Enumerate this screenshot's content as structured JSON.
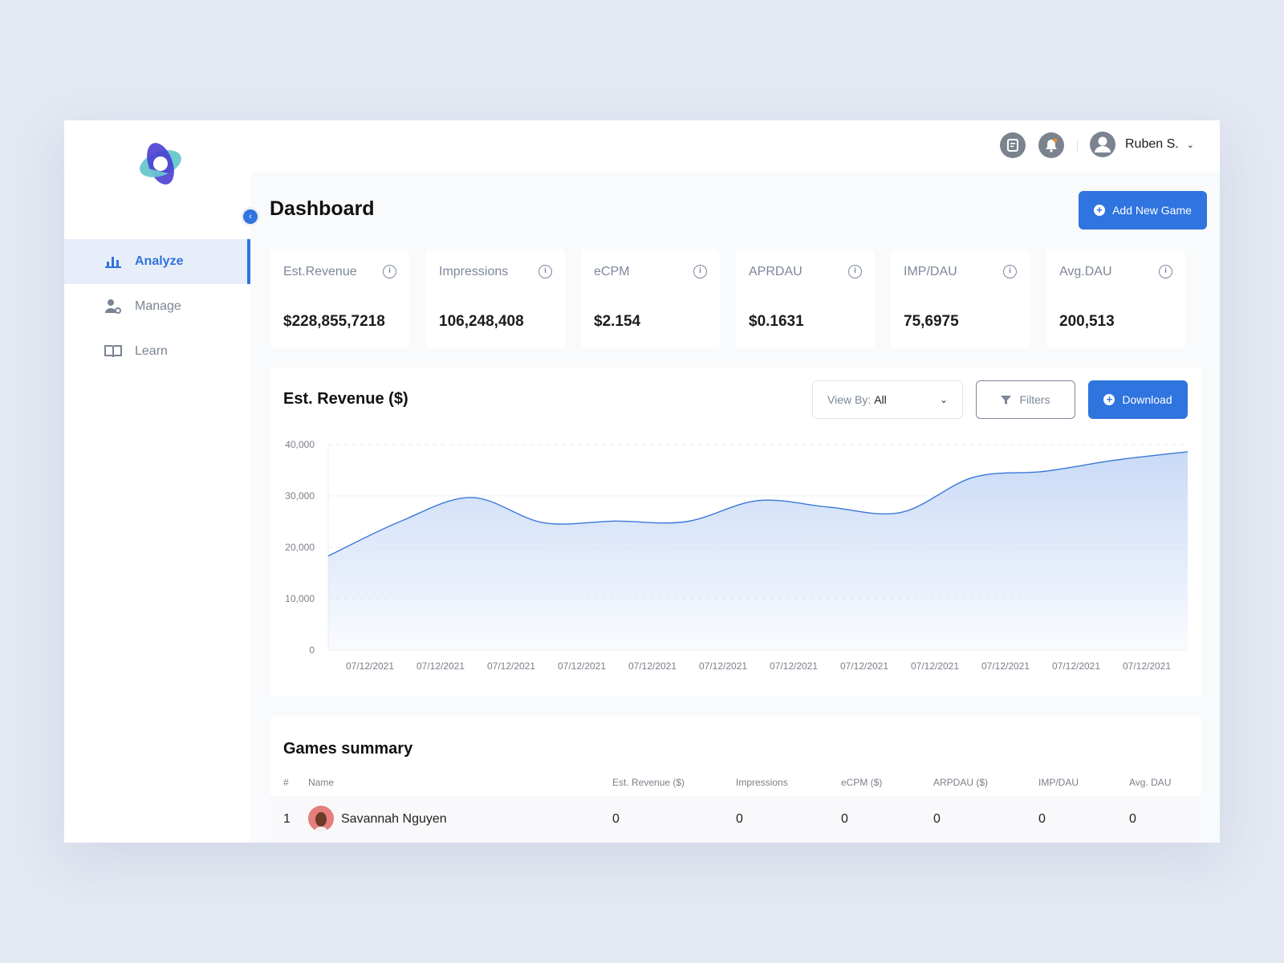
{
  "user": {
    "name": "Ruben S."
  },
  "sidebar": {
    "items": [
      {
        "label": "Analyze",
        "icon": "bar-chart-icon",
        "active": true
      },
      {
        "label": "Manage",
        "icon": "user-gear-icon"
      },
      {
        "label": "Learn",
        "icon": "book-icon"
      }
    ]
  },
  "page": {
    "title": "Dashboard",
    "add_button": "Add New Game"
  },
  "kpis": [
    {
      "label": "Est.Revenue",
      "value": "$228,855,7218"
    },
    {
      "label": "Impressions",
      "value": "106,248,408"
    },
    {
      "label": "eCPM",
      "value": "$2.154"
    },
    {
      "label": "APRDAU",
      "value": "$0.1631"
    },
    {
      "label": "IMP/DAU",
      "value": "75,6975"
    },
    {
      "label": "Avg.DAU",
      "value": "200,513"
    }
  ],
  "revenue_panel": {
    "title": "Est. Revenue ($)",
    "view_by_label": "View By:",
    "view_by_value": "All",
    "filters": "Filters",
    "download": "Download"
  },
  "chart_data": {
    "type": "area",
    "ylim": [
      0,
      40000
    ],
    "y_ticks": [
      "0",
      "10,000",
      "20,000",
      "30,000",
      "40,000"
    ],
    "x_tick_labels": [
      "07/12/2021",
      "07/12/2021",
      "07/12/2021",
      "07/12/2021",
      "07/12/2021",
      "07/12/2021",
      "07/12/2021",
      "07/12/2021",
      "07/12/2021",
      "07/12/2021",
      "07/12/2021",
      "07/12/2021"
    ],
    "values": [
      18300,
      25000,
      29700,
      24800,
      25100,
      25000,
      29100,
      27800,
      26800,
      33600,
      34800,
      37000,
      38600
    ],
    "grid": true,
    "color": "#3a78d8"
  },
  "summary": {
    "title": "Games summary",
    "columns": [
      "#",
      "Name",
      "Est. Revenue ($)",
      "Impressions",
      "eCPM ($)",
      "ARPDAU ($)",
      "IMP/DAU",
      "Avg. DAU"
    ],
    "rows": [
      [
        "1",
        "Savannah Nguyen",
        "0",
        "0",
        "0",
        "0",
        "0",
        "0"
      ]
    ]
  }
}
